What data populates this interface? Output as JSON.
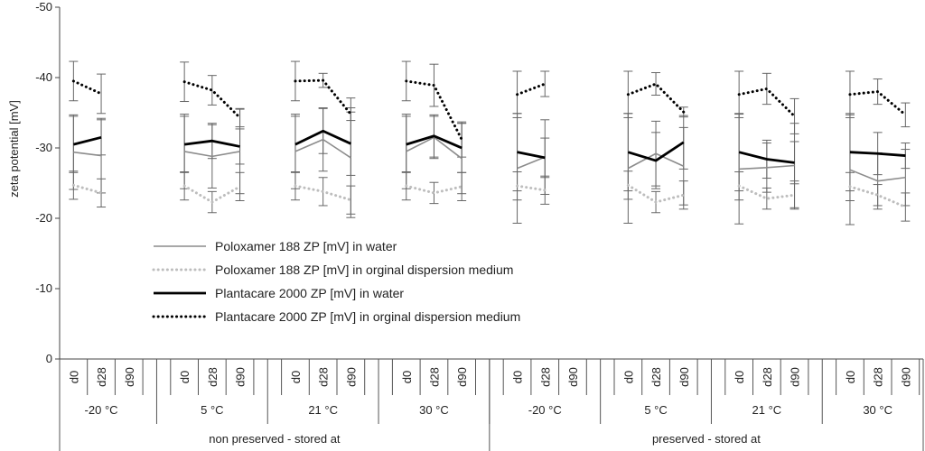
{
  "chart_data": {
    "type": "line",
    "ylabel": "zeta potential [mV]",
    "ylim": [
      0,
      -50
    ],
    "y_ticks": [
      0,
      -10,
      -20,
      -30,
      -40,
      -50
    ],
    "days": [
      "d0",
      "d28",
      "d90"
    ],
    "temperatures": [
      "-20 °C",
      "5 °C",
      "21 °C",
      "30 °C",
      "-20 °C",
      "5 °C",
      "21 °C",
      "30 °C"
    ],
    "groups": [
      "non preserved - stored at",
      "preserved - stored at"
    ],
    "legend_position": "lower-center",
    "series": [
      {
        "name": "Poloxamer 188 ZP [mV] in water",
        "color": "#8c8c8c",
        "style": "thin-solid",
        "values": [
          [
            -29.4,
            -28.9,
            null
          ],
          [
            -29.5,
            -28.8,
            -29.5
          ],
          [
            -29.5,
            -31.2,
            -28.6
          ],
          [
            -29.5,
            -31.5,
            -28.5
          ],
          [
            -27.1,
            -28.7,
            null
          ],
          [
            -27.1,
            -29.2,
            -27.4
          ],
          [
            -27.0,
            -27.2,
            -27.5
          ],
          [
            -26.9,
            -25.3,
            -25.8
          ]
        ],
        "errors": [
          [
            5.3,
            5.3,
            null
          ],
          [
            5.3,
            4.5,
            6.0
          ],
          [
            5.3,
            4.5,
            8.5
          ],
          [
            5.3,
            3.0,
            5.0
          ],
          [
            7.8,
            5.3,
            null
          ],
          [
            7.8,
            4.6,
            5.5
          ],
          [
            7.8,
            3.5,
            6.0
          ],
          [
            7.8,
            4.0,
            4.0
          ]
        ]
      },
      {
        "name": "Poloxamer 188 ZP [mV] in orginal dispersion medium",
        "color": "#bdbdbd",
        "style": "dotted",
        "values": [
          [
            -24.7,
            -23.6,
            null
          ],
          [
            -24.6,
            -22.3,
            -24.5
          ],
          [
            -24.6,
            -23.8,
            -22.6
          ],
          [
            -24.6,
            -23.6,
            -24.5
          ],
          [
            -24.6,
            -24.0,
            null
          ],
          [
            -24.7,
            -22.3,
            -23.3
          ],
          [
            -24.6,
            -22.8,
            -23.3
          ],
          [
            -24.5,
            -23.3,
            -21.6
          ]
        ],
        "errors": [
          [
            2.0,
            2.0,
            null
          ],
          [
            2.0,
            1.5,
            2.0
          ],
          [
            2.0,
            2.0,
            2.0
          ],
          [
            2.0,
            1.5,
            2.0
          ],
          [
            2.0,
            2.0,
            null
          ],
          [
            2.0,
            1.5,
            2.0
          ],
          [
            2.0,
            1.5,
            2.0
          ],
          [
            2.0,
            1.5,
            2.0
          ]
        ]
      },
      {
        "name": "Plantacare 2000 ZP [mV] in water",
        "color": "#000000",
        "style": "thick-solid",
        "values": [
          [
            -30.5,
            -31.5,
            null
          ],
          [
            -30.5,
            -31.0,
            -30.2
          ],
          [
            -30.5,
            -32.4,
            -30.6
          ],
          [
            -30.5,
            -31.7,
            -30.0
          ],
          [
            -29.4,
            -28.6,
            null
          ],
          [
            -29.4,
            -28.2,
            -30.8
          ],
          [
            -29.4,
            -28.4,
            -27.9
          ],
          [
            -29.4,
            -29.2,
            -28.9
          ]
        ],
        "errors": [
          [
            4.0,
            2.5,
            null
          ],
          [
            4.0,
            2.5,
            2.5
          ],
          [
            4.0,
            3.2,
            4.5
          ],
          [
            4.0,
            3.0,
            3.5
          ],
          [
            5.5,
            2.8,
            null
          ],
          [
            5.5,
            4.0,
            3.8
          ],
          [
            5.5,
            2.7,
            3.0
          ],
          [
            5.5,
            3.0,
            1.8
          ]
        ]
      },
      {
        "name": "Plantacare 2000 ZP [mV] in orginal dispersion medium",
        "color": "#000000",
        "style": "dotted",
        "values": [
          [
            -39.5,
            -37.7,
            null
          ],
          [
            -39.4,
            -38.2,
            -34.3
          ],
          [
            -39.5,
            -39.6,
            -34.8
          ],
          [
            -39.5,
            -38.9,
            -31.2
          ],
          [
            -37.6,
            -39.1,
            null
          ],
          [
            -37.6,
            -39.1,
            -35.1
          ],
          [
            -37.6,
            -38.4,
            -34.5
          ],
          [
            -37.6,
            -38.0,
            -34.7
          ]
        ],
        "errors": [
          [
            2.8,
            2.8,
            null
          ],
          [
            2.8,
            2.1,
            1.3
          ],
          [
            2.8,
            1.0,
            0.9
          ],
          [
            2.8,
            3.0,
            2.5
          ],
          [
            3.3,
            1.8,
            null
          ],
          [
            3.3,
            1.6,
            0.7
          ],
          [
            3.3,
            2.2,
            2.5
          ],
          [
            3.3,
            1.8,
            1.7
          ]
        ]
      }
    ]
  }
}
